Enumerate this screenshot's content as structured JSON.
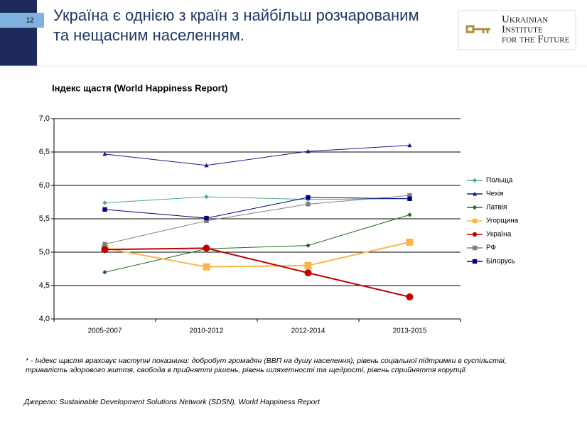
{
  "slide_number": "12",
  "header": {
    "title": [
      "Україна є однією з країн з найбільш розчарованим",
      "та нещасним населенням."
    ]
  },
  "logo": {
    "lines": [
      "Ukrainian",
      "Institute",
      "for the Future"
    ]
  },
  "chart_data": {
    "type": "line",
    "title": "Індекс щастя (World Happiness Report)",
    "categories": [
      "2005-2007",
      "2010-2012",
      "2012-2014",
      "2013-2015"
    ],
    "ylim": [
      4,
      7
    ],
    "yticks": [
      {
        "value": 4,
        "label": "4,0"
      },
      {
        "value": 4.5,
        "label": "4,5"
      },
      {
        "value": 5,
        "label": "5,0"
      },
      {
        "value": 5.5,
        "label": "5,5"
      },
      {
        "value": 6,
        "label": "6,0"
      },
      {
        "value": 6.5,
        "label": "6,5"
      },
      {
        "value": 7,
        "label": "7,0"
      }
    ],
    "grid": true,
    "legend": "right",
    "series": [
      {
        "name": "Польща",
        "color": "#4aa98a",
        "marker": "diamond",
        "values": [
          5.74,
          5.83,
          5.79,
          5.8
        ]
      },
      {
        "name": "Чехія",
        "color": "#1a1a8c",
        "marker": "triangle",
        "values": [
          6.47,
          6.3,
          6.51,
          6.6
        ]
      },
      {
        "name": "Латвія",
        "color": "#1e6b1e",
        "marker": "diamond",
        "values": [
          4.7,
          5.05,
          5.1,
          5.56
        ]
      },
      {
        "name": "Угорщина",
        "color": "#ffb347",
        "marker": "square",
        "values": [
          5.06,
          4.78,
          4.8,
          5.15
        ]
      },
      {
        "name": "Україна",
        "color": "#c00000",
        "marker": "circle",
        "values": [
          5.04,
          5.06,
          4.69,
          4.33
        ]
      },
      {
        "name": "РФ",
        "color": "#808080",
        "marker": "square",
        "values": [
          5.12,
          5.47,
          5.72,
          5.85
        ]
      },
      {
        "name": "Білорусь",
        "color": "#000080",
        "marker": "square",
        "values": [
          5.64,
          5.51,
          5.82,
          5.8
        ]
      }
    ]
  },
  "footnote": [
    "* - Індекс щастя враховує наступні показники: добробут громадян (ВВП на душу населення), рівень соціальної підтримки в суспільстві,",
    "тривалість здорового життя, свобода в прийнятті рішень, рівень шляхетності та щедрості, рівень сприйняття корупції."
  ],
  "source": "Джерело: Sustainable Development Solutions Network (SDSN), World Happiness Report"
}
